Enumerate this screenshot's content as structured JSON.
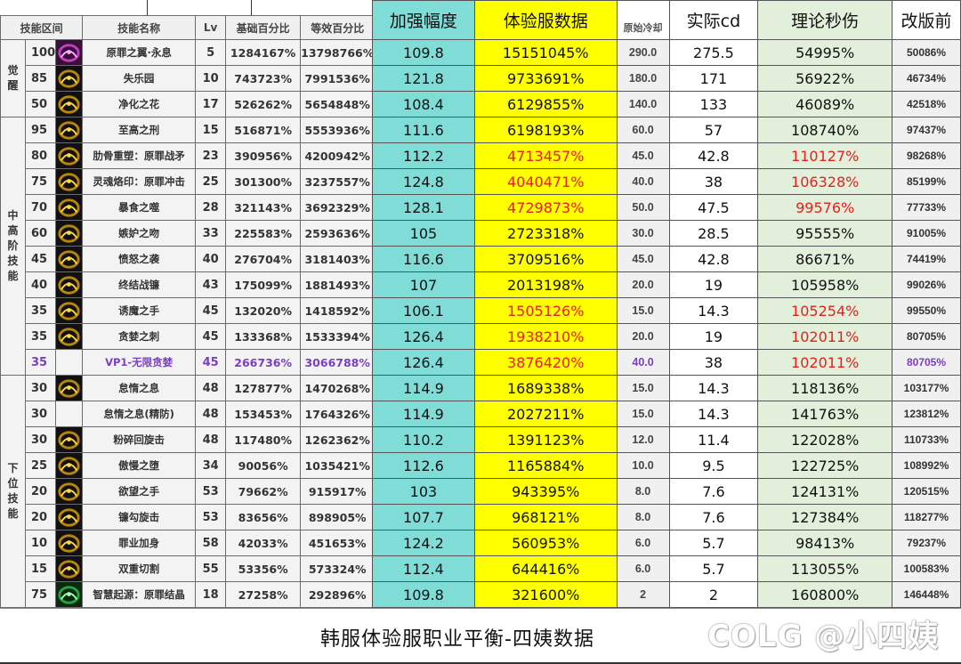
{
  "footer": {
    "title": "韩服体验服职业平衡-四姨数据",
    "watermark": "COLG @小四姨"
  },
  "left_headers": {
    "range": "技能区间",
    "name": "技能名称",
    "lv": "Lv",
    "base": "基础百分比",
    "equiv": "等效百分比"
  },
  "right_headers": {
    "boost": "加强幅度",
    "exp": "体验服数据",
    "orig_cd": "原始冷却",
    "actual_cd": "实际cd",
    "dps": "理论秒伤",
    "prev": "改版前"
  },
  "groups": [
    {
      "label": "觉醒",
      "rows": 3
    },
    {
      "label": "中高阶技能",
      "rows": 10
    },
    {
      "label": "下位技能",
      "rows": 9
    }
  ],
  "colors": {
    "boost_bg": "#7fdcd7",
    "exp_bg": "#ffff00",
    "dps_bg": "#e2efda",
    "highlight_red": "#e8201c",
    "vp_purple": "#7b3fc4"
  },
  "rows": [
    {
      "level": "100",
      "icon": "purple-wing-icon",
      "name": "原罪之翼·永息",
      "lv": "5",
      "base": "1284167%",
      "equiv": "13798766%",
      "boost": "109.8",
      "exp": "15151045%",
      "orig_cd": "290.0",
      "actual_cd": "275.5",
      "dps": "54995%",
      "prev": "50086%",
      "red": false
    },
    {
      "level": "85",
      "icon": "golden-paradise-icon",
      "name": "失乐园",
      "lv": "10",
      "base": "743723%",
      "equiv": "7991536%",
      "boost": "121.8",
      "exp": "9733691%",
      "orig_cd": "180.0",
      "actual_cd": "171",
      "dps": "56922%",
      "prev": "46734%",
      "red": false
    },
    {
      "level": "50",
      "icon": "flame-flower-icon",
      "name": "净化之花",
      "lv": "17",
      "base": "526262%",
      "equiv": "5654848%",
      "boost": "108.4",
      "exp": "6129855%",
      "orig_cd": "140.0",
      "actual_cd": "133",
      "dps": "46089%",
      "prev": "42518%",
      "red": false
    },
    {
      "level": "95",
      "icon": "star-burst-icon",
      "name": "至高之刑",
      "lv": "15",
      "base": "516871%",
      "equiv": "5553936%",
      "boost": "111.6",
      "exp": "6198193%",
      "orig_cd": "60.0",
      "actual_cd": "57",
      "dps": "108740%",
      "prev": "97437%",
      "red": false
    },
    {
      "level": "80",
      "icon": "rib-spear-icon",
      "name": "肋骨重塑：原罪战矛",
      "lv": "23",
      "base": "390956%",
      "equiv": "4200942%",
      "boost": "112.2",
      "exp": "4713457%",
      "orig_cd": "45.0",
      "actual_cd": "42.8",
      "dps": "110127%",
      "prev": "98268%",
      "red": true
    },
    {
      "level": "75",
      "icon": "soul-brand-icon",
      "name": "灵魂烙印：原罪冲击",
      "lv": "25",
      "base": "301300%",
      "equiv": "3237557%",
      "boost": "124.8",
      "exp": "4040471%",
      "orig_cd": "40.0",
      "actual_cd": "38",
      "dps": "106328%",
      "prev": "85199%",
      "red": true
    },
    {
      "level": "70",
      "icon": "devour-icon",
      "name": "暴食之噬",
      "lv": "28",
      "base": "321143%",
      "equiv": "3692329%",
      "boost": "128.1",
      "exp": "4729873%",
      "orig_cd": "50.0",
      "actual_cd": "47.5",
      "dps": "99576%",
      "prev": "77733%",
      "red": true
    },
    {
      "level": "60",
      "icon": "heart-kiss-icon",
      "name": "嫉妒之吻",
      "lv": "33",
      "base": "225583%",
      "equiv": "2593636%",
      "boost": "105",
      "exp": "2723318%",
      "orig_cd": "30.0",
      "actual_cd": "28.5",
      "dps": "95555%",
      "prev": "91005%",
      "red": false
    },
    {
      "level": "45",
      "icon": "wrath-icon",
      "name": "愤怒之袭",
      "lv": "40",
      "base": "276704%",
      "equiv": "3181403%",
      "boost": "116.6",
      "exp": "3709516%",
      "orig_cd": "45.0",
      "actual_cd": "42.8",
      "dps": "86671%",
      "prev": "74419%",
      "red": false
    },
    {
      "level": "40",
      "icon": "sickle-ring-icon",
      "name": "终结战镰",
      "lv": "43",
      "base": "175099%",
      "equiv": "1881493%",
      "boost": "107",
      "exp": "2013198%",
      "orig_cd": "20.0",
      "actual_cd": "19",
      "dps": "105958%",
      "prev": "99026%",
      "red": false
    },
    {
      "level": "35",
      "icon": "demon-hand-icon",
      "name": "诱魔之手",
      "lv": "45",
      "base": "132020%",
      "equiv": "1418592%",
      "boost": "106.1",
      "exp": "1505126%",
      "orig_cd": "15.0",
      "actual_cd": "14.3",
      "dps": "105254%",
      "prev": "99550%",
      "red": true
    },
    {
      "level": "35",
      "icon": "greed-thorn-icon",
      "name": "贪婪之刺",
      "lv": "45",
      "base": "133368%",
      "equiv": "1533394%",
      "boost": "126.4",
      "exp": "1938210%",
      "orig_cd": "20.0",
      "actual_cd": "19",
      "dps": "102011%",
      "prev": "80705%",
      "red": true
    },
    {
      "level": "35",
      "icon": "",
      "name": "VP1-无限贪婪",
      "lv": "45",
      "base": "266736%",
      "equiv": "3066788%",
      "boost": "126.4",
      "exp": "3876420%",
      "orig_cd": "40.0",
      "actual_cd": "38",
      "dps": "102011%",
      "prev": "80705%",
      "red": true,
      "vp": true
    },
    {
      "level": "30",
      "icon": "sloth-breath-icon",
      "name": "怠惰之息",
      "lv": "48",
      "base": "127877%",
      "equiv": "1470268%",
      "boost": "114.9",
      "exp": "1689338%",
      "orig_cd": "15.0",
      "actual_cd": "14.3",
      "dps": "118136%",
      "prev": "103177%",
      "red": false
    },
    {
      "level": "30",
      "icon": "",
      "name": "怠惰之息(精防)",
      "lv": "48",
      "base": "153453%",
      "equiv": "1764326%",
      "boost": "114.9",
      "exp": "2027211%",
      "orig_cd": "15.0",
      "actual_cd": "14.3",
      "dps": "141763%",
      "prev": "123812%",
      "red": false
    },
    {
      "level": "30",
      "icon": "spin-strike-icon",
      "name": "粉碎回旋击",
      "lv": "48",
      "base": "117480%",
      "equiv": "1262362%",
      "boost": "110.2",
      "exp": "1391123%",
      "orig_cd": "12.0",
      "actual_cd": "11.4",
      "dps": "122028%",
      "prev": "110733%",
      "red": false
    },
    {
      "level": "25",
      "icon": "pride-fall-icon",
      "name": "傲慢之堕",
      "lv": "34",
      "base": "90056%",
      "equiv": "1035421%",
      "boost": "112.6",
      "exp": "1165884%",
      "orig_cd": "10.0",
      "actual_cd": "9.5",
      "dps": "122725%",
      "prev": "108992%",
      "red": false
    },
    {
      "level": "20",
      "icon": "desire-hand-icon",
      "name": "欲望之手",
      "lv": "53",
      "base": "79662%",
      "equiv": "915917%",
      "boost": "103",
      "exp": "943395%",
      "orig_cd": "8.0",
      "actual_cd": "7.6",
      "dps": "124131%",
      "prev": "120515%",
      "red": false
    },
    {
      "level": "20",
      "icon": "hook-spin-icon",
      "name": "镰勾旋击",
      "lv": "53",
      "base": "83656%",
      "equiv": "898905%",
      "boost": "107.7",
      "exp": "968121%",
      "orig_cd": "8.0",
      "actual_cd": "7.6",
      "dps": "127384%",
      "prev": "118277%",
      "red": false
    },
    {
      "level": "10",
      "icon": "sin-armor-icon",
      "name": "罪业加身",
      "lv": "58",
      "base": "42033%",
      "equiv": "451653%",
      "boost": "124.2",
      "exp": "560953%",
      "orig_cd": "6.0",
      "actual_cd": "5.7",
      "dps": "98413%",
      "prev": "79237%",
      "red": false
    },
    {
      "level": "15",
      "icon": "double-cut-icon",
      "name": "双重切割",
      "lv": "55",
      "base": "53356%",
      "equiv": "573324%",
      "boost": "112.4",
      "exp": "644416%",
      "orig_cd": "6.0",
      "actual_cd": "5.7",
      "dps": "113055%",
      "prev": "100583%",
      "red": false
    },
    {
      "level": "75",
      "icon": "green-crystal-icon",
      "name": "智慧起源：原罪结晶",
      "lv": "18",
      "base": "27258%",
      "equiv": "292896%",
      "boost": "109.8",
      "exp": "321600%",
      "orig_cd": "2",
      "actual_cd": "2",
      "dps": "160800%",
      "prev": "146448%",
      "red": false
    }
  ]
}
